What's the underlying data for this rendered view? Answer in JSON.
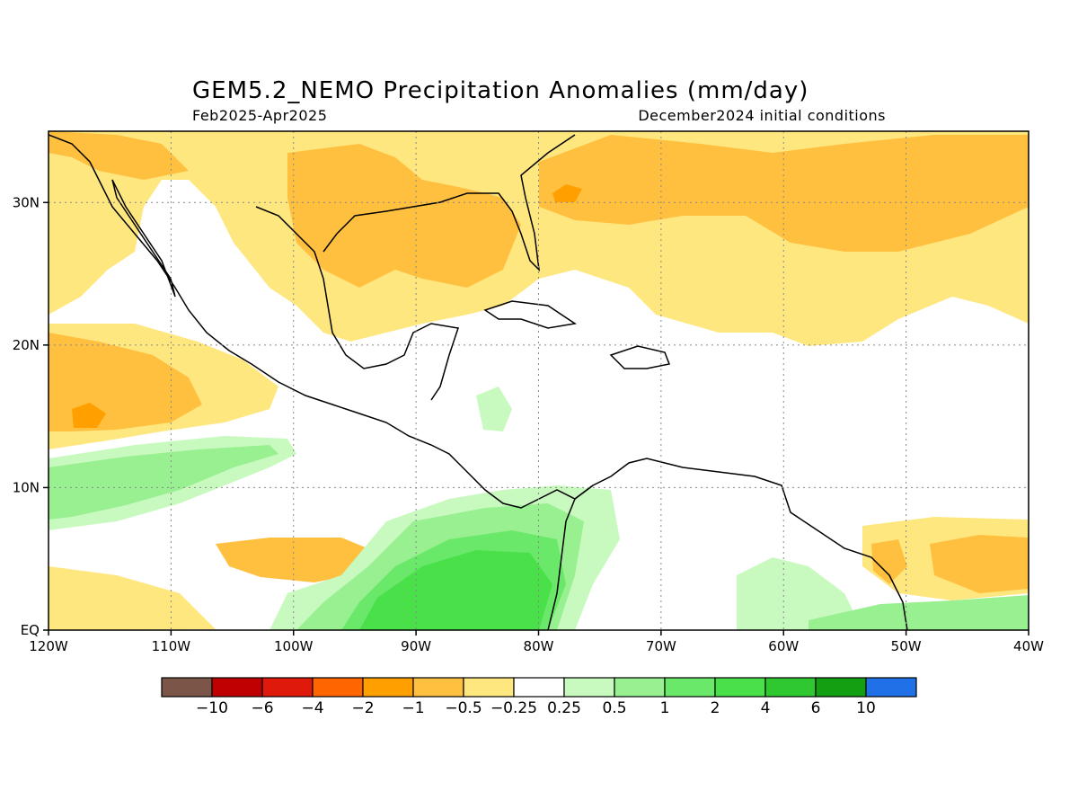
{
  "title": "GEM5.2_NEMO Precipitation Anomalies (mm/day)",
  "period": "Feb2025-Apr2025",
  "init": "December2024 initial conditions",
  "map": {
    "lon_range": [
      -120,
      -40
    ],
    "lat_range": [
      0,
      35
    ],
    "lon_ticks": [
      {
        "value": -120,
        "label": "120W"
      },
      {
        "value": -110,
        "label": "110W"
      },
      {
        "value": -100,
        "label": "100W"
      },
      {
        "value": -90,
        "label": "90W"
      },
      {
        "value": -80,
        "label": "80W"
      },
      {
        "value": -70,
        "label": "70W"
      },
      {
        "value": -60,
        "label": "60W"
      },
      {
        "value": -50,
        "label": "50W"
      },
      {
        "value": -40,
        "label": "40W"
      }
    ],
    "lat_ticks": [
      {
        "value": 0,
        "label": "EQ"
      },
      {
        "value": 10,
        "label": "10N"
      },
      {
        "value": 20,
        "label": "20N"
      },
      {
        "value": 30,
        "label": "30N"
      }
    ]
  },
  "colorbar": {
    "colors": [
      "#7a5548",
      "#c00000",
      "#e01a0a",
      "#ff6600",
      "#ffa000",
      "#ffc040",
      "#ffe780",
      "#ffffff",
      "#c8fac0",
      "#98f090",
      "#6ae86a",
      "#4ae04a",
      "#30c830",
      "#12a012",
      "#2070e8"
    ],
    "labels": [
      "−10",
      "−6",
      "−4",
      "−2",
      "−1",
      "−0.5",
      "−0.25",
      "0.25",
      "0.5",
      "1",
      "2",
      "4",
      "6",
      "10"
    ]
  }
}
